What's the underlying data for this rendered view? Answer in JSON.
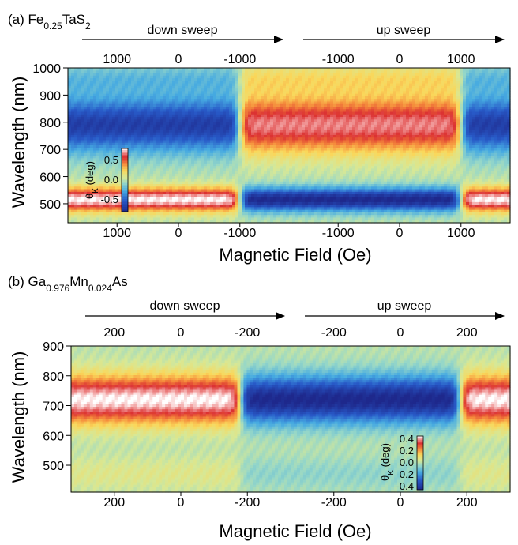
{
  "chart_data": [
    {
      "type": "heatmap",
      "panel_title": {
        "prefix": "(a) Fe",
        "sub1": "0.25",
        "mid": "TaS",
        "sub2": "2",
        "mid2": "",
        "sub3": ""
      },
      "xlabel": "Magnetic Field (Oe)",
      "ylabel": "Wavelength (nm)",
      "ylim": [
        430,
        1000
      ],
      "y_ticks": [
        500,
        600,
        700,
        800,
        900,
        1000
      ],
      "segments": [
        {
          "name": "down sweep",
          "field_range": [
            1800,
            -1800
          ],
          "top_ticks": [
            1000,
            0,
            -1000
          ],
          "bottom_ticks": [
            1000,
            0,
            -1000
          ]
        },
        {
          "name": "up sweep",
          "field_range": [
            -1800,
            1800
          ],
          "top_ticks": [
            -1000,
            0,
            1000
          ],
          "bottom_ticks": [
            -1000,
            0,
            1000
          ]
        }
      ],
      "coercive_field": 1000,
      "colorbar": {
        "label_main": "θ",
        "label_sub": "K",
        "label_rest": " (deg)",
        "range": [
          -0.8,
          0.8
        ],
        "ticks": [
          0.5,
          0.0,
          -0.5
        ],
        "tick_labels": [
          "0.5",
          "0.0",
          "-0.5"
        ]
      },
      "colors": {
        "neg": "#1e2a8c",
        "mid": "#cfe7a0",
        "pos": "#dc2a2a",
        "peak": "#ffffff"
      }
    },
    {
      "type": "heatmap",
      "panel_title": {
        "prefix": "(b) Ga",
        "sub1": "0.976",
        "mid": "Mn",
        "sub2": "0.024",
        "mid2": "As",
        "sub3": ""
      },
      "xlabel": "Magnetic Field (Oe)",
      "ylabel": "Wavelength (nm)",
      "ylim": [
        410,
        900
      ],
      "y_ticks": [
        500,
        600,
        700,
        800,
        900
      ],
      "segments": [
        {
          "name": "down sweep",
          "field_range": [
            330,
            -330
          ],
          "top_ticks": [
            200,
            0,
            -200
          ],
          "bottom_ticks": [
            200,
            0,
            -200
          ]
        },
        {
          "name": "up sweep",
          "field_range": [
            -330,
            330
          ],
          "top_ticks": [
            -200,
            0,
            200
          ],
          "bottom_ticks": [
            -200,
            0,
            200
          ]
        }
      ],
      "coercive_field": 180,
      "colorbar": {
        "label_main": "θ",
        "label_sub": "K",
        "label_rest": " (deg)",
        "range": [
          -0.45,
          0.45
        ],
        "ticks": [
          0.4,
          0.2,
          0.0,
          -0.2,
          -0.4
        ],
        "tick_labels": [
          "0.4",
          "0.2",
          "0.0",
          "-0.2",
          "-0.4"
        ]
      },
      "colors": {
        "neg": "#1e2a8c",
        "mid": "#d8e89a",
        "pos": "#dc2a2a",
        "peak": "#ffffff"
      }
    }
  ]
}
